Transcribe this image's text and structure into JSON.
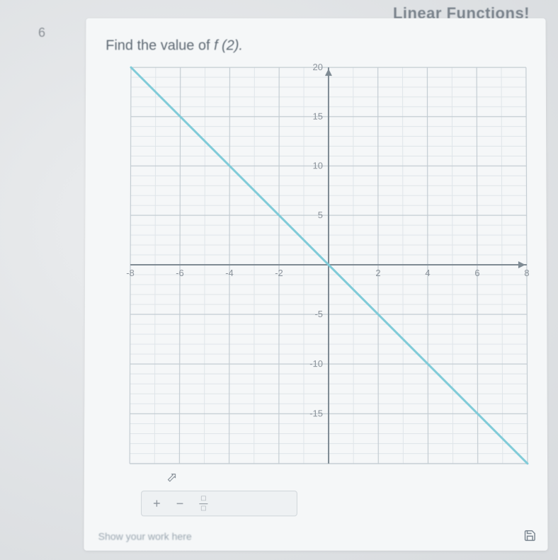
{
  "header_fragment": "Linear Functions!",
  "question_number": "6",
  "prompt_prefix": "Find the value of ",
  "prompt_fn": "f (2).",
  "show_work_label": "Show your work here",
  "toolbar": {
    "plus": "+",
    "minus": "−",
    "frac_top": "□",
    "frac_bottom": "□"
  },
  "chart": {
    "type": "line",
    "background_color": "#f5f7f8",
    "minor_grid_color": "#dfe5e9",
    "major_grid_color": "#c3ccd2",
    "axis_color": "#7e8a93",
    "tick_label_color": "#8a929a",
    "tick_fontsize": 13,
    "line_color": "#7fcbd8",
    "line_width": 3,
    "xlim": [
      -8,
      8
    ],
    "ylim": [
      -20,
      20
    ],
    "x_major_step": 2,
    "y_major_step": 5,
    "x_minor_step": 1,
    "y_minor_step": 1,
    "x_tick_labels": [
      -8,
      -6,
      -4,
      -2,
      2,
      4,
      6,
      8
    ],
    "y_tick_labels": [
      20,
      15,
      10,
      5,
      -5,
      -10,
      -15
    ],
    "line_points": [
      [
        -8,
        20
      ],
      [
        8,
        -20
      ]
    ]
  },
  "colors": {
    "page_bg": "#e8eaec",
    "card_bg": "#f5f7f8",
    "text_muted": "#8a929a",
    "text_body": "#5f6a74"
  }
}
